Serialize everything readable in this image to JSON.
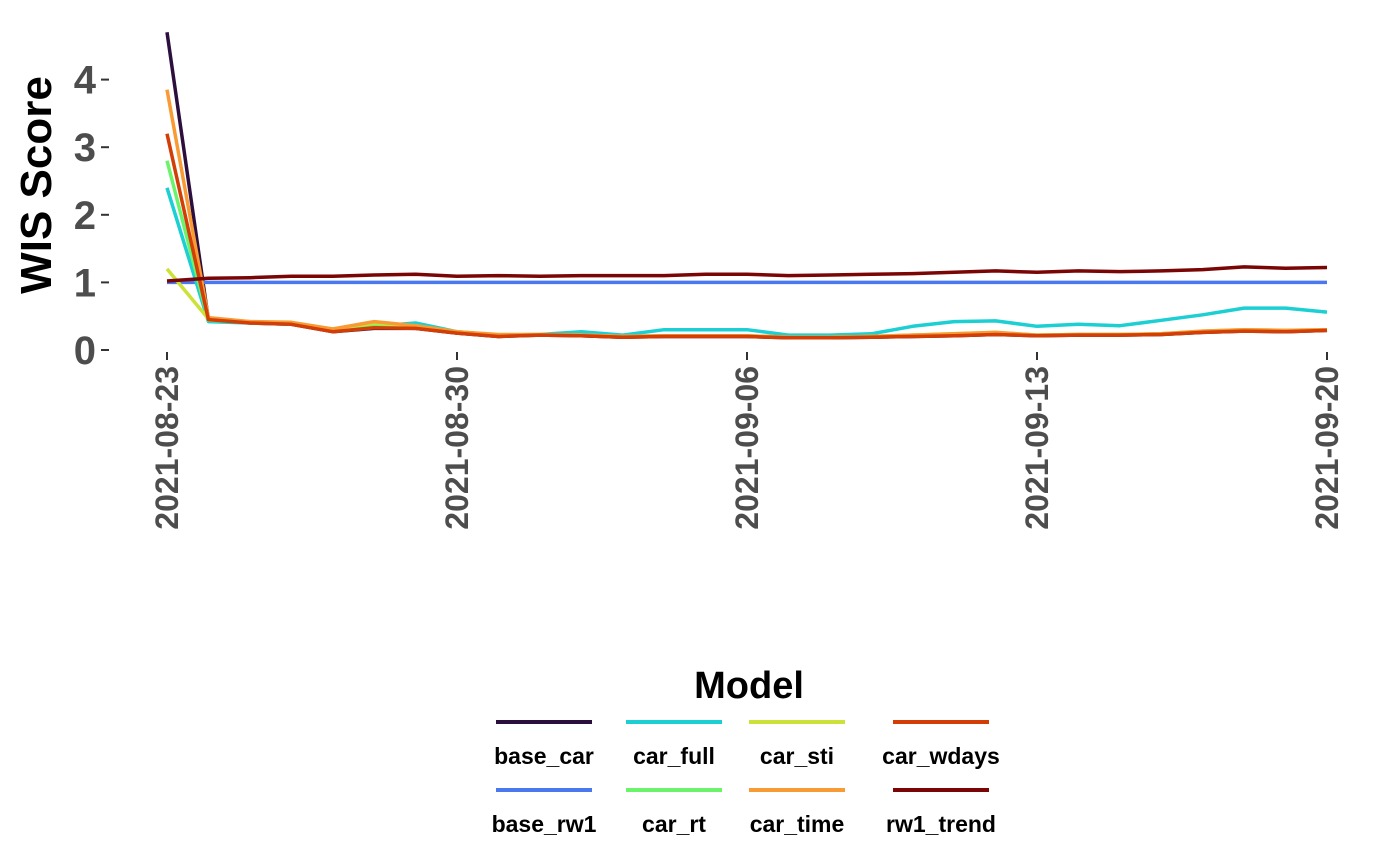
{
  "chart_data": {
    "type": "line",
    "title": "",
    "xlabel": "",
    "ylabel": "WIS Score",
    "ylim": [
      0,
      4.7
    ],
    "xlim": [
      "2021-08-23",
      "2021-09-20"
    ],
    "x_ticks": [
      "2021-08-23",
      "2021-08-30",
      "2021-09-06",
      "2021-09-13",
      "2021-09-20"
    ],
    "y_ticks": [
      "0",
      "1",
      "2",
      "3",
      "4"
    ],
    "grid": false,
    "legend": {
      "title": "Model",
      "position": "bottom"
    },
    "x": [
      "2021-08-23",
      "2021-08-24",
      "2021-08-25",
      "2021-08-26",
      "2021-08-27",
      "2021-08-28",
      "2021-08-29",
      "2021-08-30",
      "2021-08-31",
      "2021-09-01",
      "2021-09-02",
      "2021-09-03",
      "2021-09-04",
      "2021-09-05",
      "2021-09-06",
      "2021-09-07",
      "2021-09-08",
      "2021-09-09",
      "2021-09-10",
      "2021-09-11",
      "2021-09-12",
      "2021-09-13",
      "2021-09-14",
      "2021-09-15",
      "2021-09-16",
      "2021-09-17",
      "2021-09-18",
      "2021-09-19",
      "2021-09-20"
    ],
    "series": [
      {
        "name": "base_car",
        "color": "#2d0f3e",
        "values": [
          4.7,
          0.45,
          0.4,
          0.38,
          0.27,
          0.32,
          0.32,
          0.25,
          0.2,
          0.22,
          0.21,
          0.19,
          0.2,
          0.2,
          0.2,
          0.18,
          0.18,
          0.19,
          0.2,
          0.21,
          0.23,
          0.21,
          0.22,
          0.22,
          0.23,
          0.26,
          0.28,
          0.27,
          0.29
        ]
      },
      {
        "name": "base_rw1",
        "color": "#4a78f0",
        "values": [
          1.0,
          1.0,
          1.0,
          1.0,
          1.0,
          1.0,
          1.0,
          1.0,
          1.0,
          1.0,
          1.0,
          1.0,
          1.0,
          1.0,
          1.0,
          1.0,
          1.0,
          1.0,
          1.0,
          1.0,
          1.0,
          1.0,
          1.0,
          1.0,
          1.0,
          1.0,
          1.0,
          1.0,
          1.0
        ]
      },
      {
        "name": "car_full",
        "color": "#1ccfd3",
        "values": [
          2.4,
          0.42,
          0.4,
          0.38,
          0.3,
          0.35,
          0.4,
          0.27,
          0.22,
          0.23,
          0.27,
          0.22,
          0.3,
          0.3,
          0.3,
          0.22,
          0.22,
          0.24,
          0.35,
          0.42,
          0.43,
          0.35,
          0.38,
          0.36,
          0.44,
          0.52,
          0.62,
          0.62,
          0.56
        ]
      },
      {
        "name": "car_rt",
        "color": "#6bf46b",
        "values": [
          2.8,
          0.44,
          0.41,
          0.39,
          0.29,
          0.36,
          0.35,
          0.26,
          0.21,
          0.22,
          0.22,
          0.2,
          0.21,
          0.21,
          0.21,
          0.19,
          0.19,
          0.2,
          0.22,
          0.23,
          0.25,
          0.22,
          0.23,
          0.23,
          0.24,
          0.27,
          0.29,
          0.28,
          0.3
        ]
      },
      {
        "name": "car_sti",
        "color": "#cde238",
        "values": [
          1.2,
          0.46,
          0.42,
          0.4,
          0.31,
          0.4,
          0.36,
          0.27,
          0.22,
          0.23,
          0.22,
          0.2,
          0.21,
          0.21,
          0.21,
          0.19,
          0.19,
          0.2,
          0.22,
          0.24,
          0.26,
          0.22,
          0.23,
          0.23,
          0.24,
          0.28,
          0.3,
          0.29,
          0.3
        ]
      },
      {
        "name": "car_time",
        "color": "#f89b34",
        "values": [
          3.85,
          0.48,
          0.42,
          0.41,
          0.31,
          0.42,
          0.36,
          0.27,
          0.23,
          0.23,
          0.22,
          0.2,
          0.21,
          0.21,
          0.21,
          0.19,
          0.19,
          0.2,
          0.22,
          0.24,
          0.26,
          0.22,
          0.23,
          0.23,
          0.24,
          0.28,
          0.3,
          0.29,
          0.3
        ]
      },
      {
        "name": "car_wdays",
        "color": "#d23e06",
        "values": [
          3.2,
          0.45,
          0.4,
          0.38,
          0.27,
          0.33,
          0.32,
          0.25,
          0.2,
          0.22,
          0.21,
          0.19,
          0.2,
          0.2,
          0.2,
          0.18,
          0.18,
          0.19,
          0.2,
          0.21,
          0.23,
          0.21,
          0.22,
          0.22,
          0.23,
          0.26,
          0.28,
          0.27,
          0.29
        ]
      },
      {
        "name": "rw1_trend",
        "color": "#7a0505",
        "values": [
          1.02,
          1.06,
          1.07,
          1.09,
          1.09,
          1.11,
          1.12,
          1.09,
          1.1,
          1.09,
          1.1,
          1.1,
          1.1,
          1.12,
          1.12,
          1.1,
          1.11,
          1.12,
          1.13,
          1.15,
          1.17,
          1.15,
          1.17,
          1.16,
          1.17,
          1.19,
          1.23,
          1.21,
          1.22
        ]
      }
    ]
  }
}
